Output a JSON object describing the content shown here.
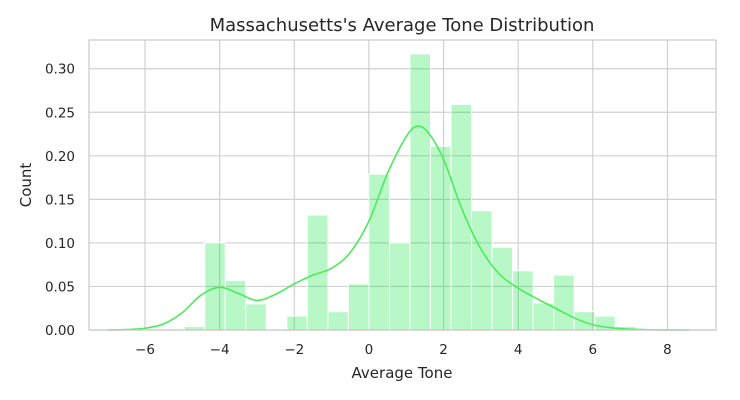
{
  "chart_data": {
    "type": "histogram",
    "title": "Massachusetts's Average Tone Distribution",
    "xlabel": "Average Tone",
    "ylabel": "Count",
    "xlim": [
      -7.5,
      9.3
    ],
    "ylim": [
      0,
      0.333
    ],
    "xticks": [
      -6,
      -4,
      -2,
      0,
      2,
      4,
      6,
      8
    ],
    "xtick_labels": [
      "−6",
      "−4",
      "−2",
      "0",
      "2",
      "4",
      "6",
      "8"
    ],
    "yticks": [
      0.0,
      0.05,
      0.1,
      0.15,
      0.2,
      0.25,
      0.3
    ],
    "ytick_labels": [
      "0.00",
      "0.05",
      "0.10",
      "0.15",
      "0.20",
      "0.25",
      "0.30"
    ],
    "grid": true,
    "bar_color": "#00e632",
    "line_color": "#4eea5e",
    "bin_width": 0.55,
    "bins": [
      {
        "x0": -4.95,
        "height": 0.004
      },
      {
        "x0": -4.4,
        "height": 0.1
      },
      {
        "x0": -3.85,
        "height": 0.057
      },
      {
        "x0": -3.3,
        "height": 0.03
      },
      {
        "x0": -2.75,
        "height": 0.0
      },
      {
        "x0": -2.2,
        "height": 0.016
      },
      {
        "x0": -1.65,
        "height": 0.132
      },
      {
        "x0": -1.1,
        "height": 0.021
      },
      {
        "x0": -0.55,
        "height": 0.053
      },
      {
        "x0": 0.0,
        "height": 0.179
      },
      {
        "x0": 0.55,
        "height": 0.1
      },
      {
        "x0": 1.1,
        "height": 0.317
      },
      {
        "x0": 1.65,
        "height": 0.211
      },
      {
        "x0": 2.2,
        "height": 0.259
      },
      {
        "x0": 2.75,
        "height": 0.137
      },
      {
        "x0": 3.3,
        "height": 0.095
      },
      {
        "x0": 3.85,
        "height": 0.068
      },
      {
        "x0": 4.4,
        "height": 0.031
      },
      {
        "x0": 4.95,
        "height": 0.063
      },
      {
        "x0": 5.5,
        "height": 0.021
      },
      {
        "x0": 6.05,
        "height": 0.016
      },
      {
        "x0": 6.6,
        "height": 0.004
      }
    ],
    "kde": {
      "x": [
        -7.0,
        -6.5,
        -6.0,
        -5.5,
        -5.0,
        -4.5,
        -4.0,
        -3.5,
        -3.0,
        -2.5,
        -2.0,
        -1.5,
        -1.0,
        -0.5,
        0.0,
        0.5,
        1.0,
        1.3,
        1.6,
        2.0,
        2.5,
        3.0,
        3.5,
        4.0,
        4.5,
        5.0,
        5.5,
        6.0,
        6.5,
        7.0,
        7.5,
        8.0,
        8.6
      ],
      "y": [
        0.0,
        0.0005,
        0.002,
        0.007,
        0.02,
        0.04,
        0.049,
        0.042,
        0.034,
        0.041,
        0.053,
        0.063,
        0.071,
        0.089,
        0.125,
        0.18,
        0.222,
        0.234,
        0.226,
        0.196,
        0.138,
        0.093,
        0.064,
        0.048,
        0.036,
        0.025,
        0.014,
        0.006,
        0.0025,
        0.001,
        0.0003,
        0.0001,
        0.0
      ]
    }
  }
}
